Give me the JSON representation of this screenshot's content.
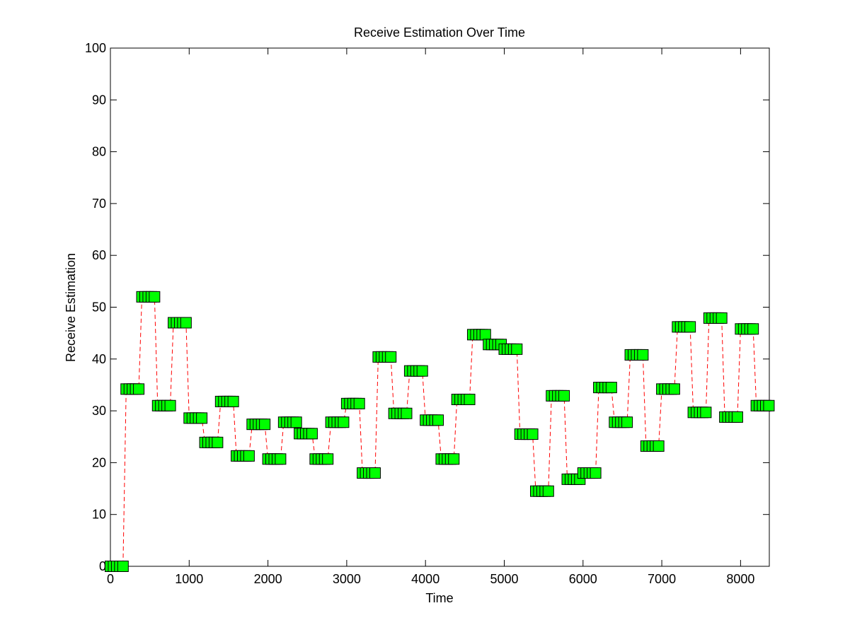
{
  "chart_data": {
    "type": "line",
    "title": "Receive Estimation Over Time",
    "x_label": "Time",
    "y_label": "Receive Estimation",
    "x": [
      0,
      40,
      80,
      120,
      160,
      200,
      240,
      280,
      320,
      360,
      400,
      440,
      480,
      520,
      560,
      600,
      640,
      680,
      720,
      760,
      800,
      840,
      880,
      920,
      960,
      1000,
      1040,
      1080,
      1120,
      1160,
      1200,
      1240,
      1280,
      1320,
      1360,
      1400,
      1440,
      1480,
      1520,
      1560,
      1600,
      1640,
      1680,
      1720,
      1760,
      1800,
      1840,
      1880,
      1920,
      1960,
      2000,
      2040,
      2080,
      2120,
      2160,
      2200,
      2240,
      2280,
      2320,
      2360,
      2400,
      2440,
      2480,
      2520,
      2560,
      2600,
      2640,
      2680,
      2720,
      2760,
      2800,
      2840,
      2880,
      2920,
      2960,
      3000,
      3040,
      3080,
      3120,
      3160,
      3200,
      3240,
      3280,
      3320,
      3360,
      3400,
      3440,
      3480,
      3520,
      3560,
      3600,
      3640,
      3680,
      3720,
      3760,
      3800,
      3840,
      3880,
      3920,
      3960,
      4000,
      4040,
      4080,
      4120,
      4160,
      4200,
      4240,
      4280,
      4320,
      4360,
      4400,
      4440,
      4480,
      4520,
      4560,
      4600,
      4640,
      4680,
      4720,
      4760,
      4800,
      4840,
      4880,
      4920,
      4960,
      5000,
      5040,
      5080,
      5120,
      5160,
      5200,
      5240,
      5280,
      5320,
      5360,
      5400,
      5440,
      5480,
      5520,
      5560,
      5600,
      5640,
      5680,
      5720,
      5760,
      5800,
      5840,
      5880,
      5920,
      5960,
      6000,
      6040,
      6080,
      6120,
      6160,
      6200,
      6240,
      6280,
      6320,
      6360,
      6400,
      6440,
      6480,
      6520,
      6560,
      6600,
      6640,
      6680,
      6720,
      6760,
      6800,
      6840,
      6880,
      6920,
      6960,
      7000,
      7040,
      7080,
      7120,
      7160,
      7200,
      7240,
      7280,
      7320,
      7360,
      7400,
      7440,
      7480,
      7520,
      7560,
      7600,
      7640,
      7680,
      7720,
      7760,
      7800,
      7840,
      7880,
      7920,
      7960,
      8000,
      8040,
      8080,
      8120,
      8160,
      8200,
      8240,
      8280,
      8320,
      8360
    ],
    "series": [
      {
        "color": "#00ff00",
        "line_color": "#ff0000",
        "values": [
          0,
          0,
          0,
          0,
          0,
          34.2,
          34.2,
          34.2,
          34.2,
          34.2,
          52,
          52,
          52,
          52,
          52,
          31,
          31,
          31,
          31,
          31,
          47,
          47,
          47,
          47,
          47,
          28.6,
          28.6,
          28.6,
          28.6,
          28.6,
          23.9,
          23.9,
          23.9,
          23.9,
          23.9,
          31.8,
          31.8,
          31.8,
          31.8,
          31.8,
          21.3,
          21.3,
          21.3,
          21.3,
          21.3,
          27.4,
          27.4,
          27.4,
          27.4,
          27.4,
          20.7,
          20.7,
          20.7,
          20.7,
          20.7,
          27.8,
          27.8,
          27.8,
          27.8,
          27.8,
          25.6,
          25.6,
          25.6,
          25.6,
          25.6,
          20.7,
          20.7,
          20.7,
          20.7,
          20.7,
          27.8,
          27.8,
          27.8,
          27.8,
          27.8,
          31.4,
          31.4,
          31.4,
          31.4,
          31.4,
          18,
          18,
          18,
          18,
          18,
          40.4,
          40.4,
          40.4,
          40.4,
          40.4,
          29.5,
          29.5,
          29.5,
          29.5,
          29.5,
          37.7,
          37.7,
          37.7,
          37.7,
          37.7,
          28.2,
          28.2,
          28.2,
          28.2,
          28.2,
          20.7,
          20.7,
          20.7,
          20.7,
          20.7,
          32.2,
          32.2,
          32.2,
          32.2,
          32.2,
          44.7,
          44.7,
          44.7,
          44.7,
          44.7,
          42.8,
          42.8,
          42.8,
          42.8,
          42.8,
          41.9,
          41.9,
          41.9,
          41.9,
          41.9,
          25.5,
          25.5,
          25.5,
          25.5,
          25.5,
          14.5,
          14.5,
          14.5,
          14.5,
          14.5,
          32.9,
          32.9,
          32.9,
          32.9,
          32.9,
          16.8,
          16.8,
          16.8,
          16.8,
          16.8,
          18,
          18,
          18,
          18,
          18,
          34.5,
          34.5,
          34.5,
          34.5,
          34.5,
          27.8,
          27.8,
          27.8,
          27.8,
          27.8,
          40.8,
          40.8,
          40.8,
          40.8,
          40.8,
          23.2,
          23.2,
          23.2,
          23.2,
          23.2,
          34.2,
          34.2,
          34.2,
          34.2,
          34.2,
          46.2,
          46.2,
          46.2,
          46.2,
          46.2,
          29.7,
          29.7,
          29.7,
          29.7,
          29.7,
          47.9,
          47.9,
          47.9,
          47.9,
          47.9,
          28.8,
          28.8,
          28.8,
          28.8,
          28.8,
          45.8,
          45.8,
          45.8,
          45.8,
          45.8,
          31,
          31,
          31,
          31,
          31
        ]
      }
    ],
    "xlim": [
      0,
      8365
    ],
    "ylim": [
      0,
      100
    ],
    "xticks": [
      0,
      1000,
      2000,
      3000,
      4000,
      5000,
      6000,
      7000,
      8000
    ],
    "yticks": [
      0,
      10,
      20,
      30,
      40,
      50,
      60,
      70,
      80,
      90,
      100
    ]
  }
}
